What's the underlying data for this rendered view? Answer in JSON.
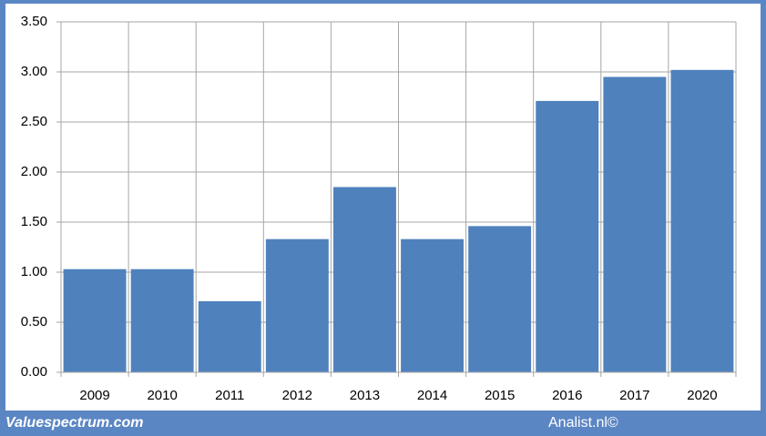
{
  "chart_data": {
    "type": "bar",
    "categories": [
      "2009",
      "2010",
      "2011",
      "2012",
      "2013",
      "2014",
      "2015",
      "2016",
      "2017",
      "2020"
    ],
    "values": [
      1.03,
      1.03,
      0.71,
      1.33,
      1.85,
      1.33,
      1.46,
      2.71,
      2.95,
      3.02
    ],
    "color": "#4f81bd",
    "ylim": [
      0,
      3.5
    ],
    "yticks": [
      {
        "value": 0,
        "label": "0.00"
      },
      {
        "value": 0.5,
        "label": "0.50"
      },
      {
        "value": 1,
        "label": "1.00"
      },
      {
        "value": 1.5,
        "label": "1.50"
      },
      {
        "value": 2,
        "label": "2.00"
      },
      {
        "value": 2.5,
        "label": "2.50"
      },
      {
        "value": 3,
        "label": "3.00"
      },
      {
        "value": 3.5,
        "label": "3.50"
      }
    ],
    "grid": true
  },
  "footer": {
    "left": "Valuespectrum.com",
    "right": "Analist.nl©"
  }
}
